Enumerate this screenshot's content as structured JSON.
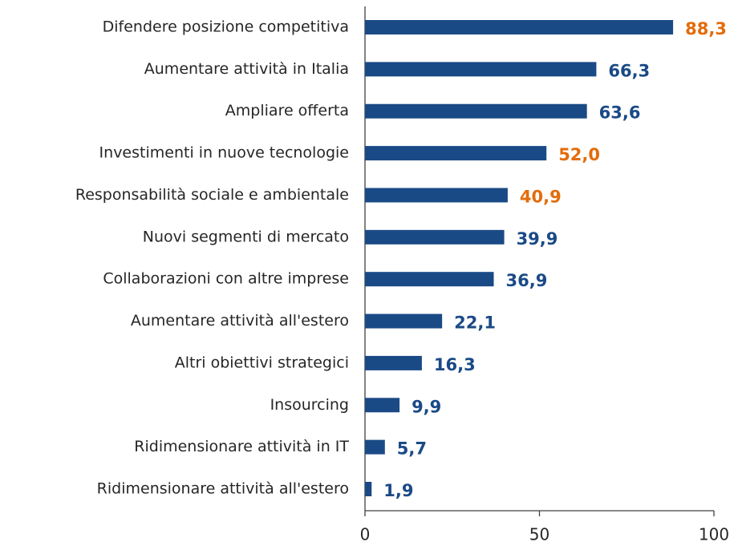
{
  "chart_data": {
    "type": "bar",
    "orientation": "horizontal",
    "categories": [
      "Difendere posizione competitiva",
      "Aumentare attività in Italia",
      "Ampliare offerta",
      "Investimenti in nuove tecnologie",
      "Responsabilità sociale e ambientale",
      "Nuovi segmenti di mercato",
      "Collaborazioni con altre imprese",
      "Aumentare attività all'estero",
      "Altri obiettivi strategici",
      "Insourcing",
      "Ridimensionare attività in IT",
      "Ridimensionare attività all'estero"
    ],
    "values": [
      88.3,
      66.3,
      63.6,
      52.0,
      40.9,
      39.9,
      36.9,
      22.1,
      16.3,
      9.9,
      5.7,
      1.9
    ],
    "value_labels": [
      "88,3",
      "66,3",
      "63,6",
      "52,0",
      "40,9",
      "39,9",
      "36,9",
      "22,1",
      "16,3",
      "9,9",
      "5,7",
      "1,9"
    ],
    "color": "#1a4a86",
    "value_label_colors": [
      "#e36c0a",
      "#1a4a86",
      "#1a4a86",
      "#e36c0a",
      "#e36c0a",
      "#1a4a86",
      "#1a4a86",
      "#1a4a86",
      "#1a4a86",
      "#1a4a86",
      "#1a4a86",
      "#1a4a86"
    ],
    "xlim": [
      0,
      100
    ],
    "xticks": [
      0,
      50,
      100
    ]
  }
}
